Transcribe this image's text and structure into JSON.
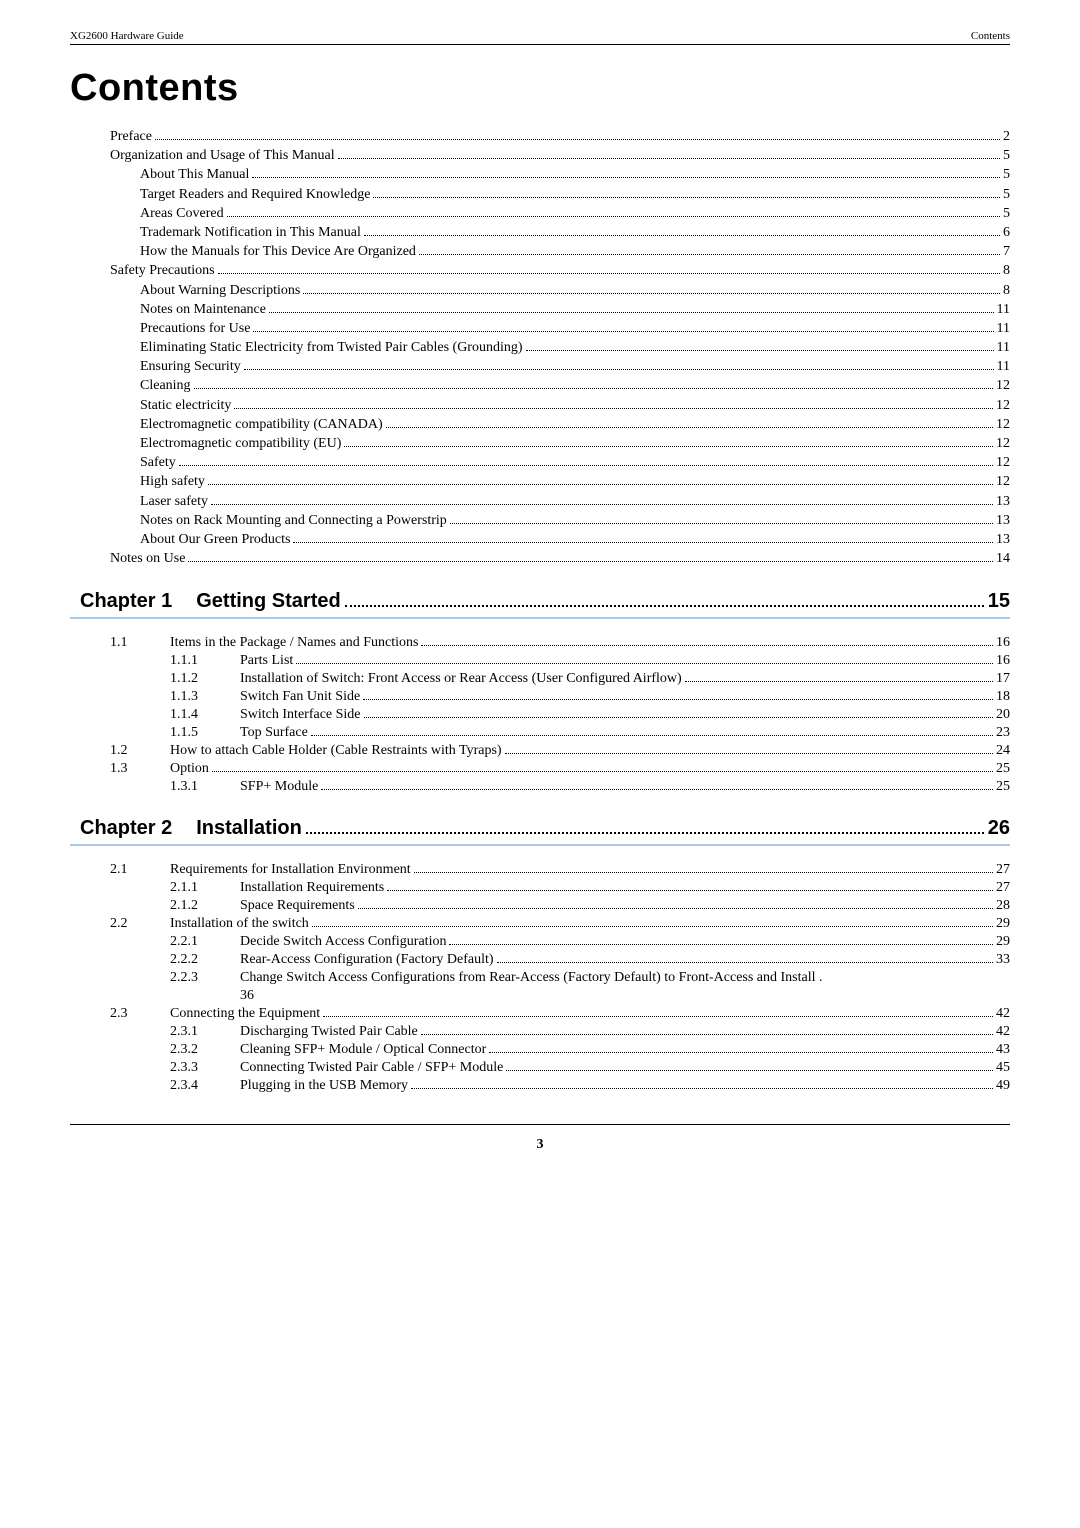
{
  "header": {
    "left": "XG2600 Hardware Guide",
    "right": "Contents"
  },
  "title": "Contents",
  "front": [
    {
      "level": 0,
      "label": "Preface",
      "page": "2"
    },
    {
      "level": 0,
      "label": "Organization and Usage of This Manual",
      "page": "5"
    },
    {
      "level": 1,
      "label": "About This Manual",
      "page": "5"
    },
    {
      "level": 1,
      "label": "Target Readers and Required Knowledge",
      "page": "5"
    },
    {
      "level": 1,
      "label": "Areas Covered",
      "page": "5"
    },
    {
      "level": 1,
      "label": "Trademark Notification in This Manual",
      "page": "6"
    },
    {
      "level": 1,
      "label": "How the Manuals for This Device Are Organized",
      "page": "7"
    },
    {
      "level": 0,
      "label": "Safety Precautions",
      "page": "8"
    },
    {
      "level": 1,
      "label": "About Warning Descriptions",
      "page": "8"
    },
    {
      "level": 1,
      "label": "Notes on Maintenance",
      "page": "11"
    },
    {
      "level": 1,
      "label": "Precautions for Use",
      "page": "11"
    },
    {
      "level": 1,
      "label": "Eliminating Static Electricity from Twisted Pair Cables (Grounding)",
      "page": "11"
    },
    {
      "level": 1,
      "label": "Ensuring Security",
      "page": "11"
    },
    {
      "level": 1,
      "label": "Cleaning",
      "page": "12"
    },
    {
      "level": 1,
      "label": "Static electricity",
      "page": "12"
    },
    {
      "level": 1,
      "label": "Electromagnetic compatibility (CANADA)",
      "page": "12"
    },
    {
      "level": 1,
      "label": "Electromagnetic compatibility (EU)",
      "page": "12"
    },
    {
      "level": 1,
      "label": "Safety",
      "page": "12"
    },
    {
      "level": 1,
      "label": "High safety",
      "page": "12"
    },
    {
      "level": 1,
      "label": "Laser safety",
      "page": "13"
    },
    {
      "level": 1,
      "label": "Notes on Rack Mounting and Connecting a Powerstrip",
      "page": "13"
    },
    {
      "level": 1,
      "label": "About Our Green Products",
      "page": "13"
    },
    {
      "level": 0,
      "label": "Notes on Use",
      "page": "14"
    }
  ],
  "chapters": [
    {
      "num": "Chapter 1",
      "title": "Getting Started",
      "page": "15",
      "sections": [
        {
          "num": "1.1",
          "title": "Items in the Package / Names and Functions",
          "page": "16"
        },
        {
          "subnum": "1.1.1",
          "title": "Parts List",
          "page": "16"
        },
        {
          "subnum": "1.1.2",
          "title": "Installation of Switch: Front Access or Rear Access (User Configured Airflow)",
          "page": "17"
        },
        {
          "subnum": "1.1.3",
          "title": "Switch Fan Unit Side",
          "page": "18"
        },
        {
          "subnum": "1.1.4",
          "title": "Switch Interface Side",
          "page": "20"
        },
        {
          "subnum": "1.1.5",
          "title": "Top Surface",
          "page": "23"
        },
        {
          "num": "1.2",
          "title": "How to attach Cable Holder (Cable Restraints with Tyraps)",
          "page": "24"
        },
        {
          "num": "1.3",
          "title": "Option",
          "page": "25"
        },
        {
          "subnum": "1.3.1",
          "title": "SFP+ Module",
          "page": "25"
        }
      ]
    },
    {
      "num": "Chapter 2",
      "title": "Installation",
      "page": "26",
      "sections": [
        {
          "num": "2.1",
          "title": "Requirements for Installation Environment",
          "page": "27"
        },
        {
          "subnum": "2.1.1",
          "title": "Installation Requirements",
          "page": "27"
        },
        {
          "subnum": "2.1.2",
          "title": "Space Requirements",
          "page": "28"
        },
        {
          "num": "2.2",
          "title": "Installation of the switch",
          "page": "29"
        },
        {
          "subnum": "2.2.1",
          "title": "Decide Switch Access Configuration",
          "page": "29"
        },
        {
          "subnum": "2.2.2",
          "title": "Rear-Access Configuration (Factory Default)",
          "page": "33"
        },
        {
          "subnum": "2.2.3",
          "title": "Change Switch Access Configurations from Rear-Access (Factory Default) to Front-Access and Install .",
          "cont": "36"
        },
        {
          "num": "2.3",
          "title": "Connecting the Equipment",
          "page": "42"
        },
        {
          "subnum": "2.3.1",
          "title": "Discharging Twisted Pair Cable",
          "page": "42"
        },
        {
          "subnum": "2.3.2",
          "title": "Cleaning SFP+ Module / Optical Connector",
          "page": "43"
        },
        {
          "subnum": "2.3.3",
          "title": "Connecting Twisted Pair Cable / SFP+ Module",
          "page": "45"
        },
        {
          "subnum": "2.3.4",
          "title": "Plugging in the USB Memory",
          "page": "49"
        }
      ]
    }
  ],
  "footer": "3"
}
